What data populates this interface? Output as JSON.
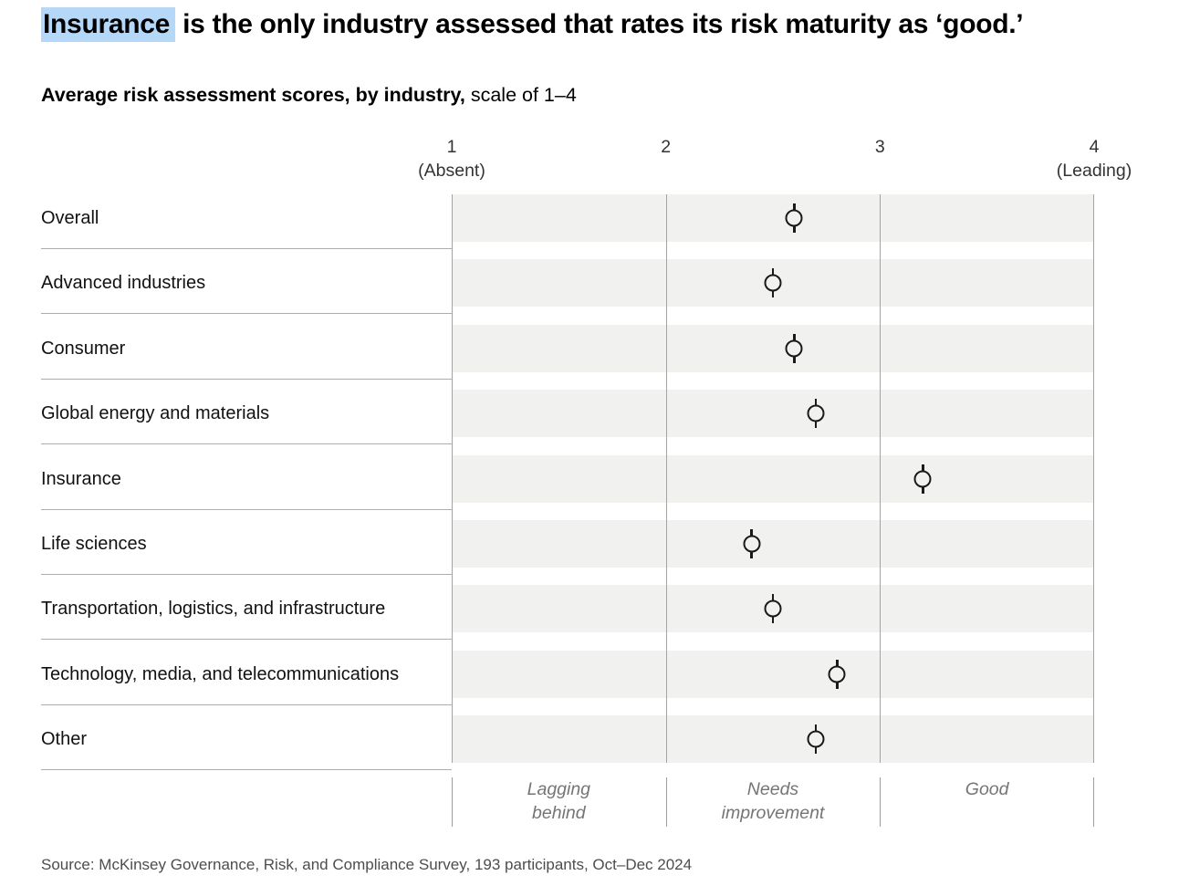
{
  "title": {
    "highlight": "Insurance",
    "rest": " is the only industry assessed that rates its risk maturity as ‘good.’"
  },
  "subtitle": {
    "bold": "Average risk assessment scores, by industry,",
    "regular": " scale of 1–4"
  },
  "axis": {
    "ticks": [
      {
        "label": "1",
        "sublabel": "(Absent)"
      },
      {
        "label": "2",
        "sublabel": ""
      },
      {
        "label": "3",
        "sublabel": ""
      },
      {
        "label": "4",
        "sublabel": "(Leading)"
      }
    ]
  },
  "zones": [
    "Lagging\nbehind",
    "Needs\nimprovement",
    "Good"
  ],
  "source": "Source: McKinsey Governance, Risk, and Compliance Survey, 193 participants, Oct–Dec 2024",
  "colors": {
    "title_highlight": "#b5d8f8",
    "band_background": "#f1f1f0",
    "gridline": "#a3a3a3",
    "marker": "#1a1a1a",
    "zone_text": "#757575"
  },
  "chart_data": {
    "type": "scatter",
    "title": "Average risk assessment scores, by industry",
    "scale_note": "scale of 1–4",
    "xlim": [
      1,
      4
    ],
    "x_ticks": [
      1,
      2,
      3,
      4
    ],
    "x_tick_labels": [
      "1 (Absent)",
      "2",
      "3",
      "4 (Leading)"
    ],
    "zone_labels": [
      "Lagging behind",
      "Needs improvement",
      "Good"
    ],
    "zone_ranges": [
      [
        1,
        2
      ],
      [
        2,
        3
      ],
      [
        3,
        4
      ]
    ],
    "categories": [
      "Overall",
      "Advanced industries",
      "Consumer",
      "Global energy and materials",
      "Insurance",
      "Life sciences",
      "Transportation, logistics, and infrastructure",
      "Technology, media, and telecommunications",
      "Other"
    ],
    "values": [
      2.6,
      2.5,
      2.6,
      2.7,
      3.2,
      2.4,
      2.5,
      2.8,
      2.7
    ],
    "marker": "open-circle-with-vertical-line",
    "grid": "vertical lines at each integer tick",
    "legend": "none"
  }
}
